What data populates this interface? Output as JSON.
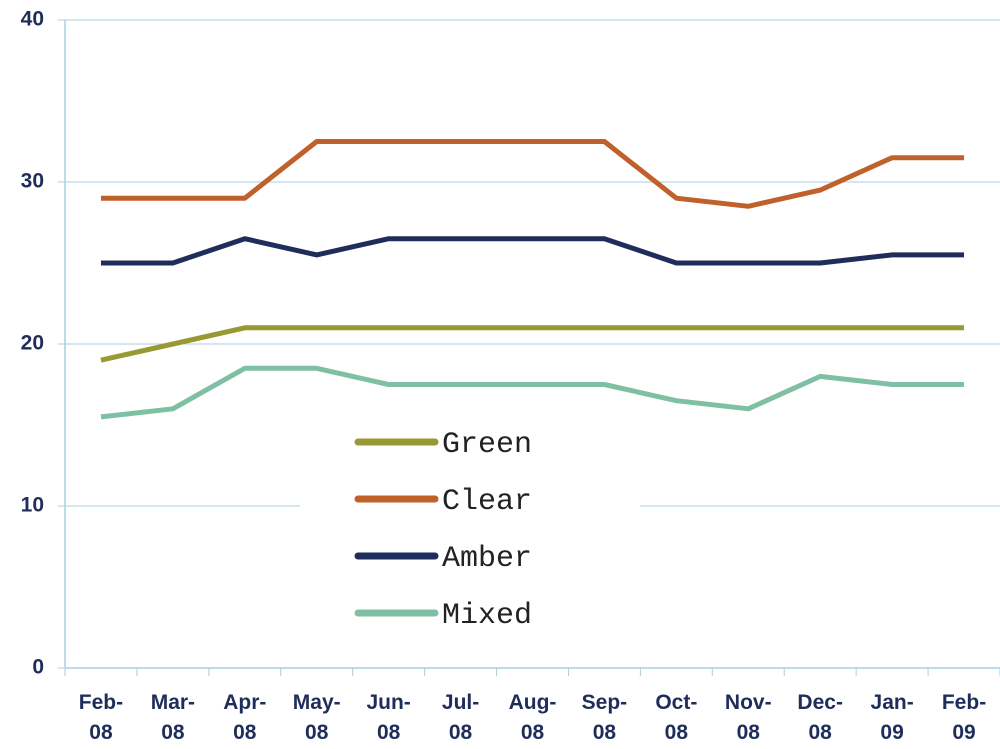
{
  "chart_data": {
    "type": "line",
    "categories": [
      "Feb-08",
      "Mar-08",
      "Apr-08",
      "May-08",
      "Jun-08",
      "Jul-08",
      "Aug-08",
      "Sep-08",
      "Oct-08",
      "Nov-08",
      "Dec-08",
      "Jan-09",
      "Feb-09"
    ],
    "series": [
      {
        "name": "Green",
        "color": "#999933",
        "values": [
          19,
          20,
          21,
          21,
          21,
          21,
          21,
          21,
          21,
          21,
          21,
          21,
          21
        ]
      },
      {
        "name": "Clear",
        "color": "#c0612b",
        "values": [
          29,
          29,
          29,
          32.5,
          32.5,
          32.5,
          32.5,
          32.5,
          29,
          28.5,
          29.5,
          31.5,
          31.5
        ]
      },
      {
        "name": "Amber",
        "color": "#1f2d5a",
        "values": [
          25,
          25,
          26.5,
          25.5,
          26.5,
          26.5,
          26.5,
          26.5,
          25,
          25,
          25,
          25.5,
          25.5
        ]
      },
      {
        "name": "Mixed",
        "color": "#7fbfa3",
        "values": [
          15.5,
          16,
          18.5,
          18.5,
          17.5,
          17.5,
          17.5,
          17.5,
          16.5,
          16,
          18,
          17.5,
          17.5
        ]
      }
    ],
    "ylim": [
      0,
      40
    ],
    "yticks": [
      0,
      10,
      20,
      30,
      40
    ],
    "grid": true,
    "legend": "center"
  }
}
